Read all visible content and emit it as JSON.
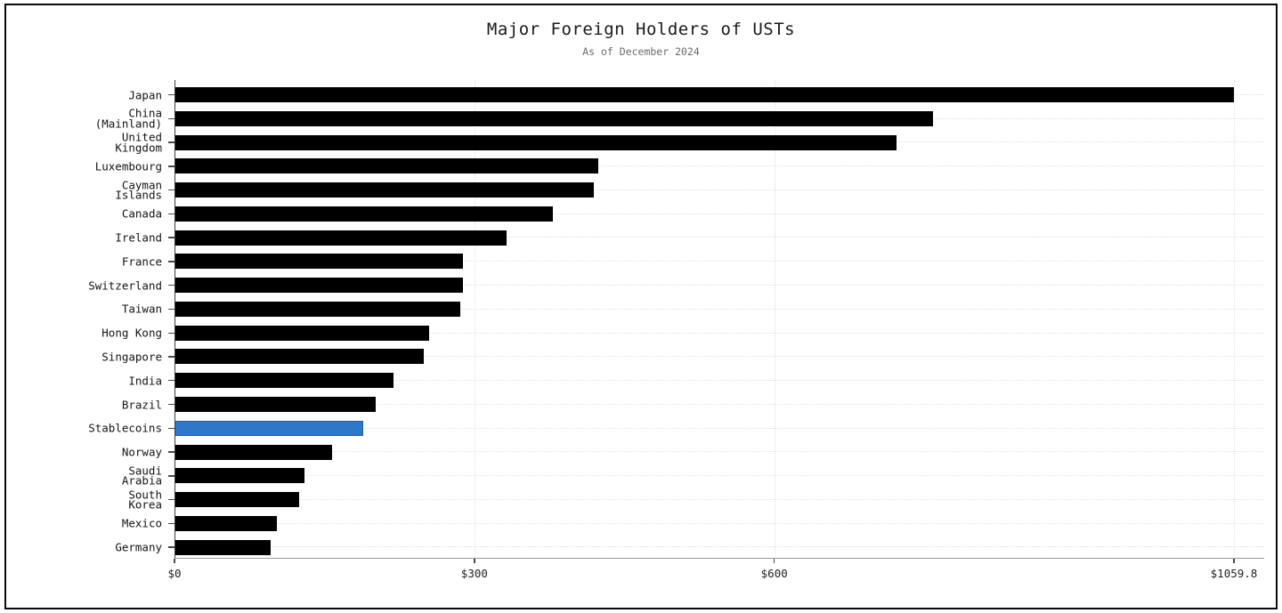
{
  "chart_data": {
    "type": "bar",
    "orientation": "horizontal",
    "title": "Major Foreign Holders of USTs",
    "subtitle": "As of December 2024",
    "categories": [
      "Japan",
      "China\n(Mainland)",
      "United\nKingdom",
      "Luxembourg",
      "Cayman\nIslands",
      "Canada",
      "Ireland",
      "France",
      "Switzerland",
      "Taiwan",
      "Hong Kong",
      "Singapore",
      "India",
      "Brazil",
      "Stablecoins",
      "Norway",
      "Saudi\nArabia",
      "South\nKorea",
      "Mexico",
      "Germany"
    ],
    "values": [
      1059.8,
      759.0,
      722.7,
      423.9,
      419.5,
      378.8,
      332.3,
      288.6,
      288.4,
      286.3,
      255.0,
      249.4,
      218.7,
      201.4,
      188.9,
      157.4,
      130.2,
      124.9,
      102.4,
      96.0
    ],
    "xlim": [
      0,
      1059.8
    ],
    "x_ticks": [
      {
        "value": 0,
        "label": "$0"
      },
      {
        "value": 300,
        "label": "$300"
      },
      {
        "value": 600,
        "label": "$600"
      },
      {
        "value": 1059.8,
        "label": "$1059.8"
      }
    ],
    "bar_color": "#000000",
    "highlight_index": 14,
    "highlight_color": "#2d78c8",
    "highlight_edge_color": "#1c5fa8",
    "gridline_color": "#e0e0e0",
    "grid": "dotted, horizontal per category and vertical at x ticks",
    "legend": "none"
  }
}
